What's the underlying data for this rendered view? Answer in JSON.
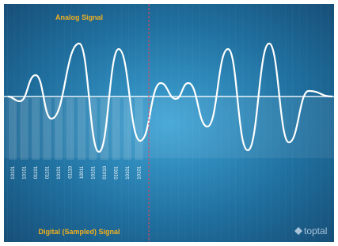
{
  "header": {
    "title": "Analog Signal"
  },
  "samples": {
    "labels": [
      "10101",
      "10101",
      "01101",
      "01101",
      "10101",
      "01110",
      "10011",
      "10101",
      "01010",
      "01001",
      "10101",
      "10101"
    ]
  },
  "footer": {
    "title": "Digital (Sampled) Signal",
    "brand": "toptal"
  }
}
